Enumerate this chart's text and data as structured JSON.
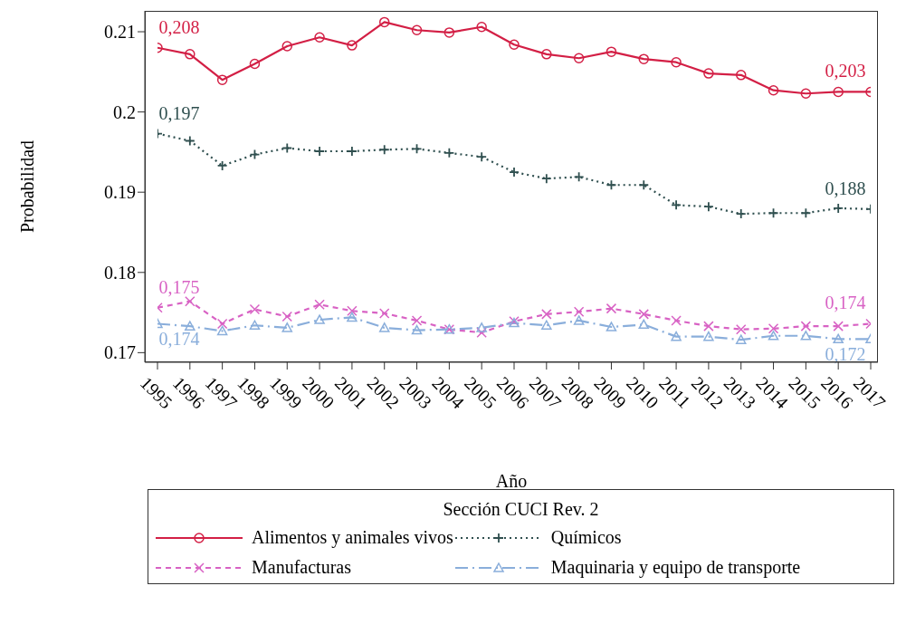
{
  "chart_data": {
    "type": "line",
    "xlabel": "Año",
    "ylabel": "Probabilidad",
    "legend_title": "Sección CUCI Rev. 2",
    "legend": "bottom",
    "categories": [
      "1995",
      "1996",
      "1997",
      "1998",
      "1999",
      "2000",
      "2001",
      "2002",
      "2003",
      "2004",
      "2005",
      "2006",
      "2007",
      "2008",
      "2009",
      "2010",
      "2011",
      "2012",
      "2013",
      "2014",
      "2015",
      "2016",
      "2017"
    ],
    "ylim": [
      0.1688,
      0.2126
    ],
    "yticks": [
      0.17,
      0.18,
      0.19,
      0.2,
      0.21
    ],
    "series": [
      {
        "name": "Alimentos y animales vivos",
        "color": "#d31f45",
        "marker": "circle",
        "line_style": "solid",
        "values": [
          0.208,
          0.2072,
          0.204,
          0.206,
          0.2082,
          0.2093,
          0.2083,
          0.2112,
          0.2102,
          0.2099,
          0.2106,
          0.2084,
          0.2072,
          0.2067,
          0.2075,
          0.2066,
          0.2062,
          0.2048,
          0.2046,
          0.2027,
          0.2023,
          0.2025,
          0.2025
        ]
      },
      {
        "name": "Químicos",
        "color": "#2f4f4f",
        "marker": "cross",
        "line_style": "dotted",
        "values": [
          0.1973,
          0.1964,
          0.1933,
          0.1947,
          0.1955,
          0.1951,
          0.1951,
          0.1953,
          0.1954,
          0.1949,
          0.1944,
          0.1925,
          0.1917,
          0.1919,
          0.1909,
          0.1909,
          0.1884,
          0.1882,
          0.1873,
          0.1874,
          0.1874,
          0.188,
          0.1879
        ]
      },
      {
        "name": "Manufacturas",
        "color": "#d862c4",
        "marker": "x",
        "line_style": "dashed",
        "values": [
          0.1756,
          0.1764,
          0.1736,
          0.1754,
          0.1745,
          0.176,
          0.1752,
          0.1749,
          0.174,
          0.1729,
          0.1725,
          0.1739,
          0.1748,
          0.1751,
          0.1755,
          0.1748,
          0.174,
          0.1733,
          0.1729,
          0.173,
          0.1733,
          0.1733,
          0.1736
        ]
      },
      {
        "name": "Maquinaria y equipo de transporte",
        "color": "#8aaedb",
        "marker": "triangle",
        "line_style": "dashdot",
        "values": [
          0.1736,
          0.1733,
          0.1727,
          0.1734,
          0.1731,
          0.1741,
          0.1744,
          0.1731,
          0.1728,
          0.1729,
          0.1731,
          0.1737,
          0.1734,
          0.174,
          0.1732,
          0.1735,
          0.172,
          0.172,
          0.1716,
          0.1721,
          0.1721,
          0.1717,
          0.1717
        ]
      }
    ],
    "annotations": [
      {
        "text": "0,208",
        "x": "1995",
        "y": 0.208
      },
      {
        "text": "0,203",
        "x": "2017",
        "y": 0.2025
      },
      {
        "text": "0,197",
        "x": "1995",
        "y": 0.1973
      },
      {
        "text": "0,188",
        "x": "2017",
        "y": 0.1879
      },
      {
        "text": "0,175",
        "x": "1995",
        "y": 0.1756
      },
      {
        "text": "0,174",
        "x": "2017",
        "y": 0.1736
      },
      {
        "text": "0,174",
        "x": "1995",
        "y": 0.1736
      },
      {
        "text": "0,172",
        "x": "2017",
        "y": 0.1717
      }
    ]
  }
}
